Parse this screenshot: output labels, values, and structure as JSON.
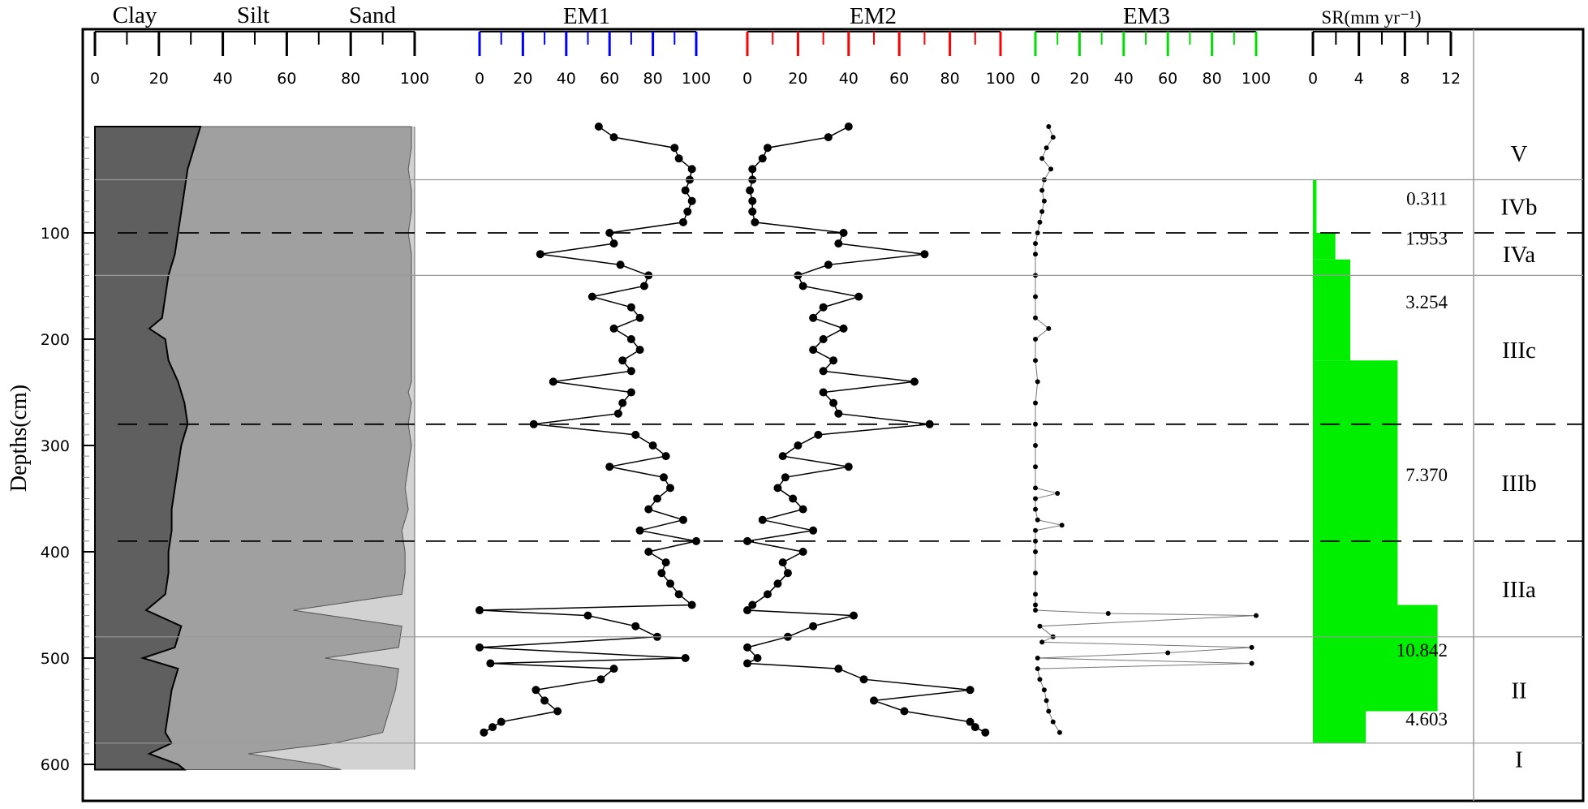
{
  "colors": {
    "clay_fill": "#5f5f5f",
    "silt_fill": "#a0a0a0",
    "sand_fill": "#d2d2d2",
    "em1_axis": "#0000ff",
    "em2_axis": "#ff0000",
    "em3_axis": "#00dd00",
    "sr_fill": "#00ee00",
    "frame": "#000000",
    "zone_line": "#999999",
    "dashed_line": "#000000"
  },
  "chart_data": {
    "type": "line",
    "ylabel": "Depths(cm)",
    "ylim": [
      0,
      610
    ],
    "yticks": [
      100,
      200,
      300,
      400,
      500,
      600
    ],
    "yticklabels": [
      "100",
      "200",
      "300",
      "400",
      "500",
      "600"
    ],
    "grain_size": {
      "titles": [
        "Clay",
        "Silt",
        "Sand"
      ],
      "xlim": [
        0,
        100
      ],
      "xticks": [
        0,
        20,
        40,
        60,
        80,
        100
      ],
      "xticklabels": [
        "0",
        "20",
        "40",
        "60",
        "80",
        "100"
      ],
      "depth": [
        0,
        20,
        40,
        60,
        80,
        100,
        120,
        140,
        160,
        180,
        190,
        200,
        220,
        240,
        250,
        260,
        280,
        300,
        320,
        340,
        360,
        380,
        400,
        420,
        440,
        455,
        470,
        490,
        500,
        510,
        530,
        550,
        570,
        580,
        590,
        600,
        605
      ],
      "clay": [
        33,
        31,
        29,
        28,
        27,
        26,
        25,
        23,
        22,
        21,
        17,
        22,
        23,
        26,
        27,
        28,
        29,
        27,
        26,
        25,
        24,
        24,
        23,
        23,
        22,
        16,
        27,
        25,
        15,
        26,
        24,
        23,
        22,
        24,
        17,
        26,
        28
      ],
      "clay_silt": [
        99,
        99,
        98,
        99,
        99,
        98,
        99,
        99,
        99,
        99,
        99,
        99,
        99,
        99,
        98,
        99,
        98,
        99,
        98,
        97,
        98,
        96,
        97,
        97,
        96,
        62,
        96,
        95,
        72,
        95,
        94,
        92,
        90,
        75,
        48,
        70,
        77
      ]
    },
    "em1": {
      "title": "EM1",
      "xlim": [
        0,
        100
      ],
      "xticks": [
        0,
        20,
        40,
        60,
        80,
        100
      ],
      "xticklabels": [
        "0",
        "20",
        "40",
        "60",
        "80",
        "100"
      ],
      "depth": [
        0,
        10,
        20,
        30,
        40,
        50,
        60,
        70,
        80,
        90,
        100,
        110,
        120,
        130,
        140,
        150,
        160,
        170,
        180,
        190,
        200,
        210,
        220,
        230,
        240,
        250,
        260,
        270,
        280,
        290,
        300,
        310,
        320,
        330,
        340,
        350,
        360,
        370,
        380,
        390,
        400,
        410,
        420,
        430,
        440,
        450,
        455,
        460,
        470,
        480,
        490,
        500,
        505,
        510,
        520,
        530,
        540,
        550,
        560,
        565,
        570
      ],
      "values": [
        55,
        62,
        90,
        92,
        98,
        97,
        95,
        98,
        96,
        94,
        60,
        62,
        28,
        65,
        78,
        76,
        52,
        70,
        74,
        62,
        70,
        74,
        66,
        70,
        34,
        70,
        66,
        64,
        25,
        72,
        80,
        86,
        60,
        85,
        88,
        82,
        78,
        94,
        74,
        100,
        78,
        86,
        84,
        88,
        92,
        98,
        0,
        50,
        72,
        82,
        0,
        95,
        5,
        62,
        56,
        26,
        30,
        36,
        10,
        6,
        2
      ]
    },
    "em2": {
      "title": "EM2",
      "xlim": [
        0,
        100
      ],
      "xticks": [
        0,
        20,
        40,
        60,
        80,
        100
      ],
      "xticklabels": [
        "0",
        "20",
        "40",
        "60",
        "80",
        "100"
      ],
      "depth": [
        0,
        10,
        20,
        30,
        40,
        50,
        60,
        70,
        80,
        90,
        100,
        110,
        120,
        130,
        140,
        150,
        160,
        170,
        180,
        190,
        200,
        210,
        220,
        230,
        240,
        250,
        260,
        270,
        280,
        290,
        300,
        310,
        320,
        330,
        340,
        350,
        360,
        370,
        380,
        390,
        400,
        410,
        420,
        430,
        440,
        450,
        455,
        460,
        470,
        480,
        490,
        500,
        505,
        510,
        520,
        530,
        540,
        550,
        560,
        565,
        570
      ],
      "values": [
        40,
        32,
        8,
        6,
        2,
        2,
        1,
        2,
        2,
        3,
        38,
        36,
        70,
        32,
        20,
        22,
        44,
        30,
        26,
        38,
        30,
        26,
        34,
        30,
        66,
        30,
        34,
        36,
        72,
        28,
        20,
        14,
        40,
        15,
        12,
        18,
        22,
        6,
        26,
        0,
        22,
        14,
        16,
        12,
        8,
        2,
        0,
        42,
        26,
        16,
        0,
        4,
        0,
        36,
        46,
        88,
        50,
        62,
        88,
        90,
        94
      ]
    },
    "em3": {
      "title": "EM3",
      "xlim": [
        0,
        100
      ],
      "xticks": [
        0,
        20,
        40,
        60,
        80,
        100
      ],
      "xticklabels": [
        "0",
        "20",
        "40",
        "60",
        "80",
        "100"
      ],
      "depth": [
        0,
        10,
        20,
        30,
        40,
        50,
        60,
        70,
        80,
        90,
        100,
        110,
        120,
        140,
        160,
        180,
        190,
        200,
        220,
        240,
        260,
        280,
        300,
        320,
        340,
        345,
        350,
        360,
        370,
        375,
        380,
        390,
        400,
        420,
        440,
        450,
        455,
        458,
        460,
        470,
        480,
        485,
        490,
        495,
        500,
        505,
        510,
        520,
        530,
        540,
        550,
        560,
        570
      ],
      "values": [
        6,
        8,
        5,
        3,
        7,
        4,
        3,
        4,
        3,
        2,
        1,
        0,
        0,
        0,
        0,
        0,
        6,
        0,
        0,
        1,
        0,
        0,
        0,
        0,
        0,
        10,
        0,
        0,
        1,
        12,
        0,
        0,
        0,
        0,
        0,
        0,
        0,
        33,
        100,
        2,
        8,
        3,
        98,
        60,
        1,
        98,
        1,
        2,
        4,
        5,
        6,
        8,
        11
      ]
    },
    "sr": {
      "title": "SR(mm yr⁻¹)",
      "xlim": [
        0,
        12
      ],
      "xticks": [
        0,
        4,
        8,
        12
      ],
      "xticklabels": [
        "0",
        "4",
        "8",
        "12"
      ],
      "steps": [
        {
          "top": 50,
          "bottom": 100,
          "value": 0.311,
          "label": "0.311"
        },
        {
          "top": 100,
          "bottom": 125,
          "value": 1.953,
          "label": "1.953"
        },
        {
          "top": 125,
          "bottom": 220,
          "value": 3.254,
          "label": "3.254"
        },
        {
          "top": 220,
          "bottom": 450,
          "value": 7.37,
          "label": "7.370"
        },
        {
          "top": 450,
          "bottom": 550,
          "value": 10.842,
          "label": "10.842"
        },
        {
          "top": 550,
          "bottom": 580,
          "value": 4.603,
          "label": "4.603"
        }
      ]
    },
    "zones": [
      {
        "label": "V",
        "top": 0,
        "bottom": 50
      },
      {
        "label": "IVb",
        "top": 50,
        "bottom": 100
      },
      {
        "label": "IVa",
        "top": 100,
        "bottom": 140
      },
      {
        "label": "IIIc",
        "top": 140,
        "bottom": 280
      },
      {
        "label": "IIIb",
        "top": 280,
        "bottom": 390
      },
      {
        "label": "IIIa",
        "top": 390,
        "bottom": 480
      },
      {
        "label": "II",
        "top": 480,
        "bottom": 580
      },
      {
        "label": "I",
        "top": 580,
        "bottom": 610
      }
    ],
    "solid_boundaries": [
      50,
      140,
      480,
      580
    ],
    "dashed_boundaries": [
      100,
      280,
      390
    ]
  }
}
